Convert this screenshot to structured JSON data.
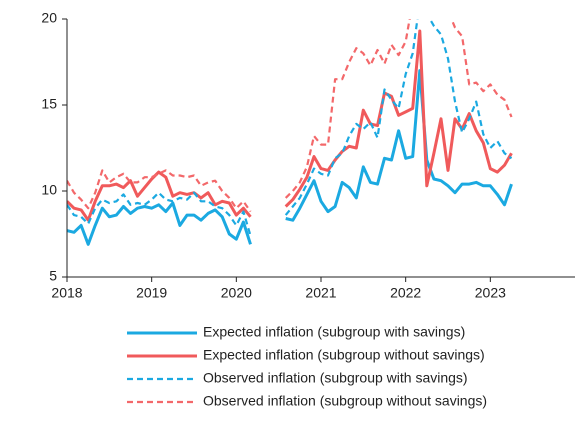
{
  "chart_data": {
    "type": "line",
    "x": [
      2018,
      2018.083,
      2018.167,
      2018.25,
      2018.333,
      2018.417,
      2018.5,
      2018.583,
      2018.667,
      2018.75,
      2018.833,
      2018.917,
      2019,
      2019.083,
      2019.167,
      2019.25,
      2019.333,
      2019.417,
      2019.5,
      2019.583,
      2019.667,
      2019.75,
      2019.833,
      2019.917,
      2020,
      2020.083,
      2020.167,
      2020.25,
      2020.333,
      2020.417,
      2020.5,
      2020.583,
      2020.667,
      2020.75,
      2020.833,
      2020.917,
      2021,
      2021.083,
      2021.167,
      2021.25,
      2021.333,
      2021.417,
      2021.5,
      2021.583,
      2021.667,
      2021.75,
      2021.833,
      2021.917,
      2022,
      2022.083,
      2022.167,
      2022.25,
      2022.333,
      2022.417,
      2022.5,
      2022.583,
      2022.667,
      2022.75,
      2022.833,
      2022.917,
      2023,
      2023.083,
      2023.167,
      2023.25
    ],
    "series": [
      {
        "name": "Expected inflation (subgroup with savings)",
        "color": "#1ba9e1",
        "style": "solid",
        "values": [
          7.7,
          7.6,
          8.0,
          6.9,
          8.0,
          9.0,
          8.5,
          8.6,
          9.1,
          8.7,
          9.0,
          9.1,
          9.0,
          9.2,
          8.8,
          9.3,
          8.0,
          8.6,
          8.6,
          8.3,
          8.7,
          8.9,
          8.5,
          7.5,
          7.2,
          8.2,
          6.9,
          null,
          null,
          null,
          null,
          8.4,
          8.3,
          9.0,
          9.8,
          10.6,
          9.4,
          8.8,
          9.1,
          10.5,
          10.2,
          9.6,
          11.4,
          10.5,
          10.4,
          11.9,
          11.8,
          13.5,
          11.9,
          12.0,
          17.0,
          11.8,
          10.7,
          10.6,
          10.3,
          9.9,
          10.4,
          10.4,
          10.5,
          10.3,
          10.3,
          9.8,
          9.2,
          10.4
        ]
      },
      {
        "name": "Expected inflation (subgroup without savings)",
        "color": "#f05a5b",
        "style": "solid",
        "values": [
          9.4,
          9.0,
          8.9,
          8.3,
          9.4,
          10.3,
          10.3,
          10.4,
          10.2,
          10.6,
          9.7,
          10.2,
          10.7,
          11.1,
          10.8,
          9.7,
          9.9,
          9.8,
          9.9,
          9.6,
          9.9,
          9.2,
          9.4,
          9.3,
          8.6,
          9.0,
          8.5,
          null,
          null,
          null,
          null,
          9.1,
          9.5,
          10.1,
          10.8,
          12.0,
          11.3,
          11.2,
          11.8,
          12.3,
          12.6,
          12.5,
          14.7,
          13.9,
          13.8,
          15.7,
          15.5,
          14.4,
          14.6,
          14.8,
          19.3,
          10.3,
          12.2,
          14.2,
          11.2,
          14.2,
          13.6,
          14.5,
          13.5,
          12.8,
          11.3,
          11.1,
          11.5,
          12.2
        ]
      },
      {
        "name": "Observed inflation (subgroup with savings)",
        "color": "#1ba9e1",
        "style": "dashed",
        "values": [
          9.2,
          8.6,
          8.5,
          8.1,
          9.0,
          9.5,
          9.3,
          9.4,
          9.8,
          9.2,
          9.3,
          9.2,
          9.5,
          9.9,
          9.5,
          9.4,
          9.6,
          9.5,
          9.9,
          9.4,
          9.4,
          9.1,
          9.0,
          8.6,
          8.0,
          8.8,
          7.4,
          null,
          null,
          null,
          null,
          8.6,
          9.1,
          9.6,
          10.4,
          11.3,
          11.0,
          10.9,
          11.9,
          12.2,
          13.2,
          13.9,
          13.6,
          14.0,
          13.1,
          15.9,
          15.3,
          14.8,
          16.8,
          18.0,
          21.0,
          20.3,
          19.6,
          19.1,
          17.7,
          15.2,
          13.4,
          14.2,
          15.2,
          13.3,
          12.5,
          12.9,
          12.2,
          11.9
        ]
      },
      {
        "name": "Observed inflation (subgroup without savings)",
        "color": "#f3686a",
        "style": "dashed",
        "values": [
          10.6,
          9.9,
          9.5,
          9.0,
          9.9,
          11.2,
          10.5,
          10.8,
          11.0,
          10.5,
          10.5,
          10.8,
          10.8,
          11.0,
          11.2,
          10.9,
          10.9,
          10.8,
          10.9,
          10.3,
          10.5,
          10.6,
          10.0,
          9.6,
          9.0,
          9.4,
          8.8,
          null,
          null,
          null,
          null,
          9.6,
          10.0,
          10.5,
          11.4,
          13.2,
          12.7,
          12.7,
          16.5,
          16.5,
          17.5,
          18.3,
          18.0,
          17.3,
          18.2,
          17.4,
          18.5,
          17.9,
          18.7,
          21.0,
          22.0,
          21.5,
          21.0,
          21.0,
          20.5,
          19.5,
          19.0,
          16.2,
          16.3,
          15.8,
          16.2,
          15.6,
          15.3,
          14.3
        ]
      }
    ],
    "xlim": [
      2018,
      2024
    ],
    "xticks": [
      2018,
      2019,
      2020,
      2021,
      2022,
      2023
    ],
    "ylim": [
      5,
      20
    ],
    "yticks": [
      5,
      10,
      15,
      20
    ],
    "grid": false
  }
}
